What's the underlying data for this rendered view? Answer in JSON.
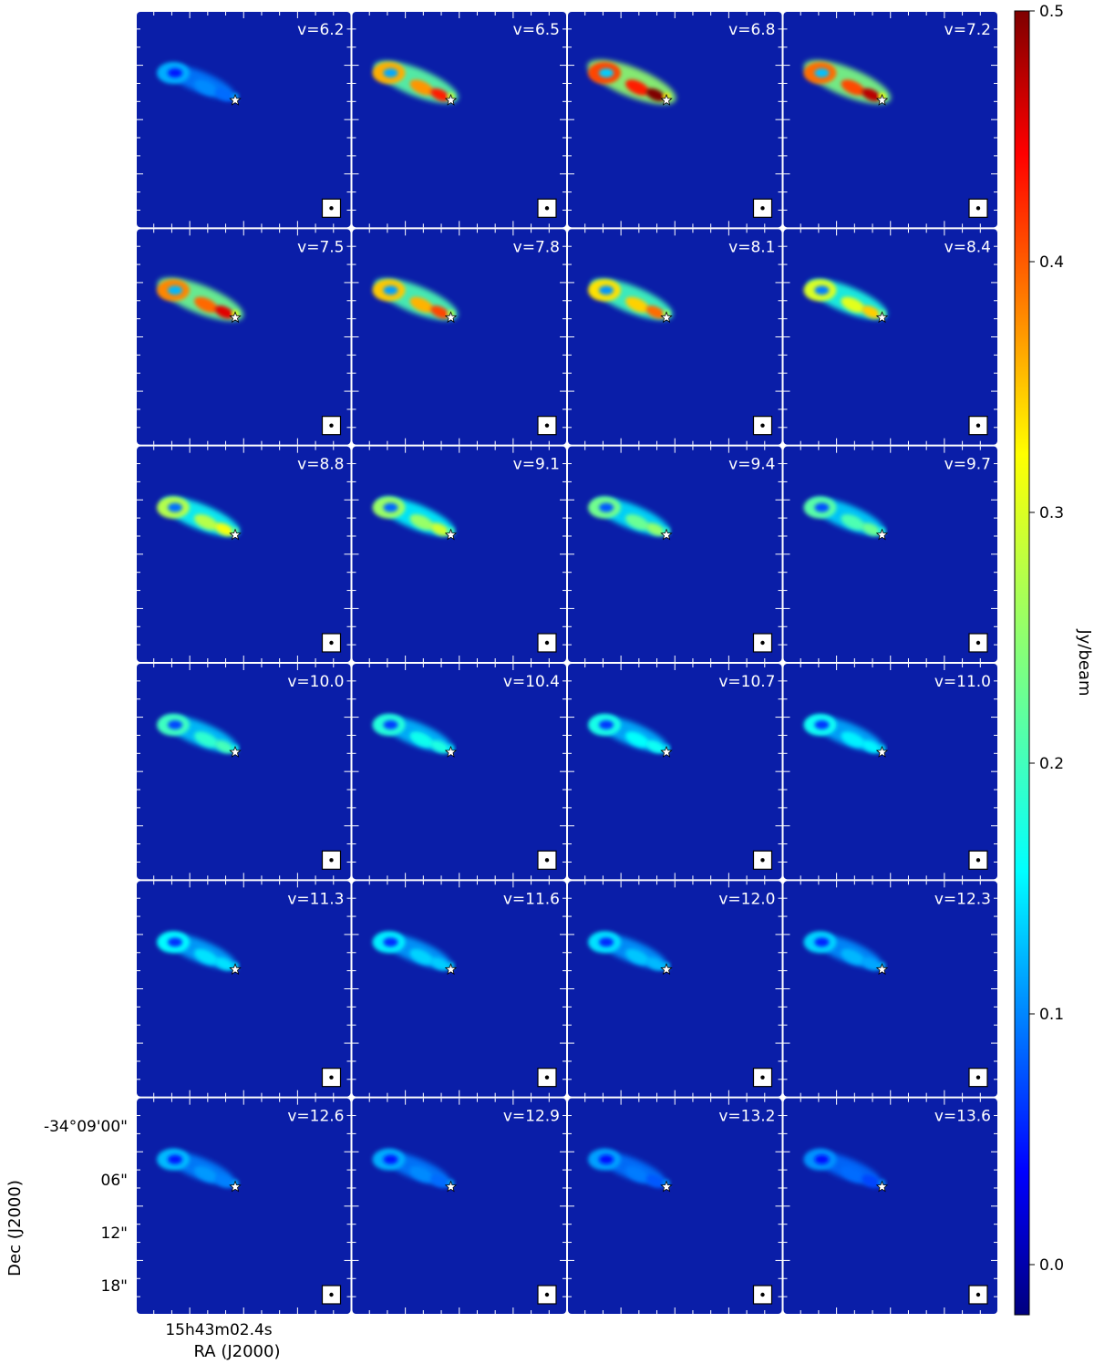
{
  "chart_data": {
    "type": "heatmap",
    "description_kind": "channel-map",
    "colormap": "jet",
    "colorbar": {
      "label": "Jy/beam",
      "range": [
        -0.02,
        0.5
      ],
      "ticks": [
        "0.0",
        "0.1",
        "0.2",
        "0.3",
        "0.4",
        "0.5"
      ],
      "tick_values": [
        0.0,
        0.1,
        0.2,
        0.3,
        0.4,
        0.5
      ]
    },
    "xlabel": "RA (J2000)",
    "ylabel": "Dec (J2000)",
    "x_ticks": [
      "15h43m02.4s"
    ],
    "y_ticks": [
      "-34°09'00\"",
      "06\"",
      "12\"",
      "18\""
    ],
    "grid_layout": "6 rows x 4 columns",
    "panels": [
      {
        "label": "v=6.2",
        "peak_jy_beam": 0.1
      },
      {
        "label": "v=6.5",
        "peak_jy_beam": 0.42
      },
      {
        "label": "v=6.8",
        "peak_jy_beam": 0.5
      },
      {
        "label": "v=7.2",
        "peak_jy_beam": 0.47
      },
      {
        "label": "v=7.5",
        "peak_jy_beam": 0.45
      },
      {
        "label": "v=7.8",
        "peak_jy_beam": 0.4
      },
      {
        "label": "v=8.1",
        "peak_jy_beam": 0.38
      },
      {
        "label": "v=8.4",
        "peak_jy_beam": 0.33
      },
      {
        "label": "v=8.8",
        "peak_jy_beam": 0.3
      },
      {
        "label": "v=9.1",
        "peak_jy_beam": 0.28
      },
      {
        "label": "v=9.4",
        "peak_jy_beam": 0.25
      },
      {
        "label": "v=9.7",
        "peak_jy_beam": 0.23
      },
      {
        "label": "v=10.0",
        "peak_jy_beam": 0.21
      },
      {
        "label": "v=10.4",
        "peak_jy_beam": 0.19
      },
      {
        "label": "v=10.7",
        "peak_jy_beam": 0.18
      },
      {
        "label": "v=11.0",
        "peak_jy_beam": 0.17
      },
      {
        "label": "v=11.3",
        "peak_jy_beam": 0.16
      },
      {
        "label": "v=11.6",
        "peak_jy_beam": 0.15
      },
      {
        "label": "v=12.0",
        "peak_jy_beam": 0.14
      },
      {
        "label": "v=12.3",
        "peak_jy_beam": 0.13
      },
      {
        "label": "v=12.6",
        "peak_jy_beam": 0.11
      },
      {
        "label": "v=12.9",
        "peak_jy_beam": 0.1
      },
      {
        "label": "v=13.2",
        "peak_jy_beam": 0.09
      },
      {
        "label": "v=13.6",
        "peak_jy_beam": 0.08
      }
    ],
    "colors": {
      "background": "#0a1ea8",
      "star": "#ffffff",
      "label_text": "#ffffff"
    }
  }
}
